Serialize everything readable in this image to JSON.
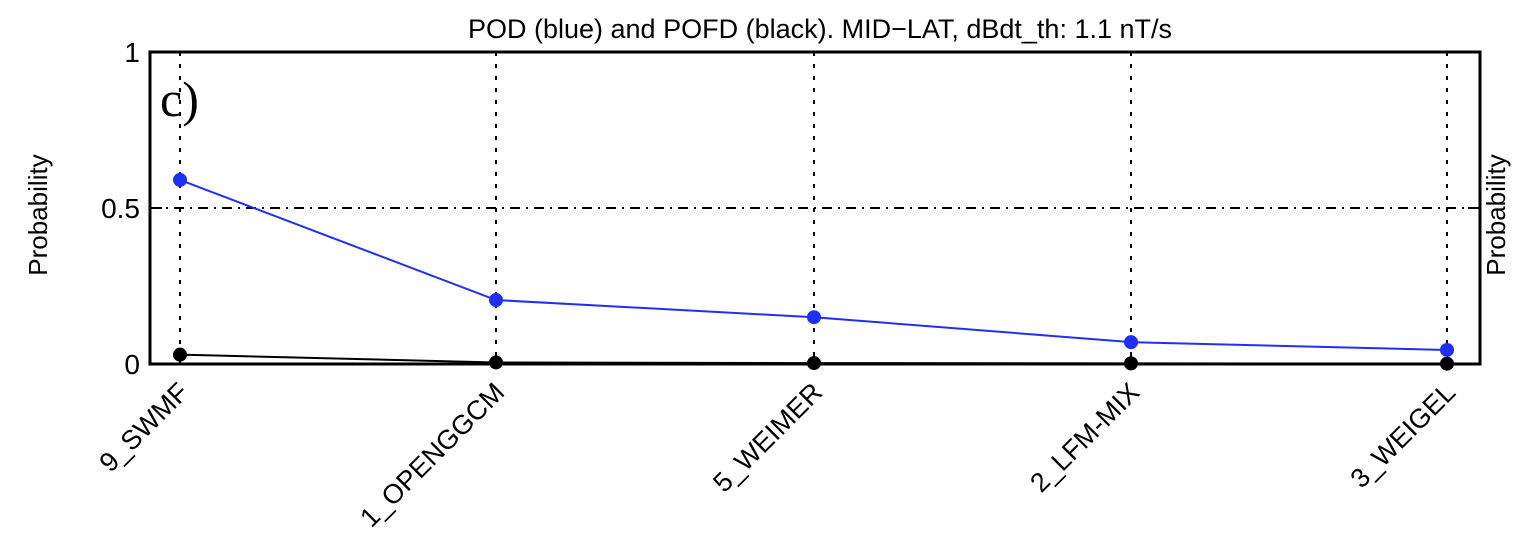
{
  "chart_data": {
    "type": "line",
    "title": "POD (blue) and POFD (black). MID−LAT, dBdt_th: 1.1 nT/s",
    "panel_label": "c)",
    "ylabel_left": "Probability",
    "ylabel_right": "Probability",
    "ylim": [
      0,
      1
    ],
    "yticks": [
      "0",
      "0.5",
      "1"
    ],
    "ytick_values": [
      0,
      0.5,
      1
    ],
    "categories": [
      "9_SWMF",
      "1_OPENGGCM",
      "5_WEIMER",
      "2_LFM-MIX",
      "3_WEIGEL"
    ],
    "grid": true,
    "series": [
      {
        "values": [
          0.59,
          0.205,
          0.15,
          0.07,
          0.045
        ],
        "color": "#1f2ff5"
      },
      {
        "values": [
          0.03,
          0.005,
          0.003,
          0.002,
          0.001
        ],
        "color": "#000000"
      }
    ]
  }
}
